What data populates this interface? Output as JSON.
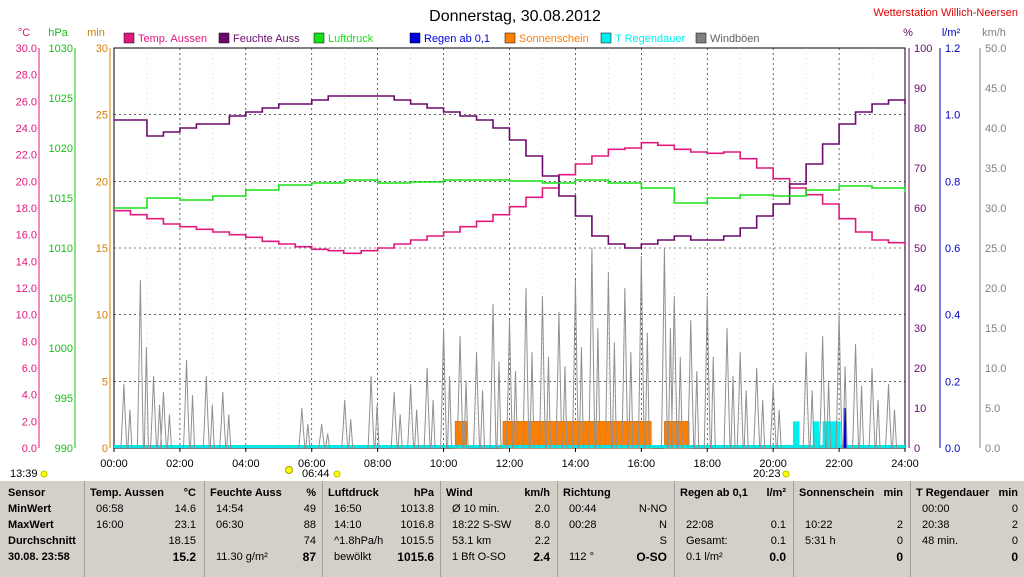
{
  "title": "Donnerstag, 30.08.2012",
  "station": "Wetterstation Willich-Neersen",
  "units": {
    "c": "°C",
    "hpa": "hPa",
    "min": "min",
    "pct": "%",
    "lm2": "l/m²",
    "kmh": "km/h"
  },
  "legend": [
    {
      "label": "Temp. Aussen",
      "color": "#e0197d"
    },
    {
      "label": "Feuchte Auss",
      "color": "#6a0a6e"
    },
    {
      "label": "Luftdruck",
      "color": "#19e019"
    },
    {
      "label": "Regen ab 0,1",
      "color": "#0000e0"
    },
    {
      "label": "Sonnenschein",
      "color": "#ff8000"
    },
    {
      "label": "T Regendauer",
      "color": "#00f0f0"
    },
    {
      "label": "Windböen",
      "color": "#808080"
    }
  ],
  "chart_data": {
    "type": "line",
    "x_ticks": [
      "00:00",
      "02:00",
      "04:00",
      "06:00",
      "08:00",
      "10:00",
      "12:00",
      "14:00",
      "16:00",
      "18:00",
      "20:00",
      "22:00",
      "24:00"
    ],
    "axes": {
      "temp_c": {
        "ticks": [
          "0.0",
          "2.0",
          "4.0",
          "6.0",
          "8.0",
          "10.0",
          "12.0",
          "14.0",
          "16.0",
          "18.0",
          "20.0",
          "22.0",
          "24.0",
          "26.0",
          "28.0",
          "30.0"
        ],
        "range": [
          0,
          30
        ],
        "color": "#e0197d"
      },
      "pressure_hpa": {
        "ticks": [
          "990",
          "995",
          "1000",
          "1005",
          "1010",
          "1015",
          "1020",
          "1025",
          "1030"
        ],
        "range": [
          990,
          1030
        ],
        "color": "#19c019"
      },
      "minutes": {
        "ticks": [
          "0",
          "5",
          "10",
          "15",
          "20",
          "25",
          "30"
        ],
        "range": [
          0,
          30
        ],
        "color": "#d08000"
      },
      "humidity_pct": {
        "ticks": [
          "0",
          "10",
          "20",
          "30",
          "40",
          "50",
          "60",
          "70",
          "80",
          "90",
          "100"
        ],
        "range": [
          0,
          100
        ],
        "color": "#6a0a6e"
      },
      "rain_lm2": {
        "ticks": [
          "0.0",
          "0.2",
          "0.4",
          "0.6",
          "0.8",
          "1.0",
          "1.2"
        ],
        "range": [
          0,
          1.2
        ],
        "color": "#0000c0"
      },
      "wind_kmh": {
        "ticks": [
          "0.0",
          "5.0",
          "10.0",
          "15.0",
          "20.0",
          "25.0",
          "30.0",
          "35.0",
          "40.0",
          "45.0",
          "50.0"
        ],
        "range": [
          0,
          50
        ],
        "color": "#808080"
      }
    },
    "series": [
      {
        "name": "Temp. Aussen",
        "axis": "temp_c",
        "color": "#e0197d",
        "points": [
          [
            0,
            17.8
          ],
          [
            0.5,
            17.5
          ],
          [
            1,
            17.2
          ],
          [
            1.5,
            16.8
          ],
          [
            2,
            16.6
          ],
          [
            2.5,
            16.4
          ],
          [
            3,
            16.2
          ],
          [
            3.5,
            16.0
          ],
          [
            4,
            15.8
          ],
          [
            4.5,
            15.5
          ],
          [
            5,
            15.3
          ],
          [
            5.5,
            15.1
          ],
          [
            6,
            14.9
          ],
          [
            6.5,
            14.8
          ],
          [
            6.97,
            14.6
          ],
          [
            7.5,
            14.8
          ],
          [
            8,
            15.0
          ],
          [
            8.5,
            15.3
          ],
          [
            9,
            15.6
          ],
          [
            9.5,
            15.9
          ],
          [
            10,
            16.2
          ],
          [
            10.5,
            16.6
          ],
          [
            11,
            17.0
          ],
          [
            11.5,
            17.5
          ],
          [
            12,
            18.1
          ],
          [
            12.5,
            18.8
          ],
          [
            13,
            19.5
          ],
          [
            13.5,
            20.5
          ],
          [
            14,
            21.3
          ],
          [
            14.5,
            21.9
          ],
          [
            15,
            22.4
          ],
          [
            15.5,
            22.5
          ],
          [
            16,
            22.9
          ],
          [
            16.5,
            22.7
          ],
          [
            17,
            22.4
          ],
          [
            17.5,
            22.2
          ],
          [
            18,
            22.1
          ],
          [
            18.5,
            22.2
          ],
          [
            19,
            21.7
          ],
          [
            19.5,
            21.0
          ],
          [
            20,
            20.2
          ],
          [
            20.5,
            19.5
          ],
          [
            21,
            19.0
          ],
          [
            21.5,
            18.3
          ],
          [
            22,
            17.2
          ],
          [
            22.5,
            16.2
          ],
          [
            23,
            15.6
          ],
          [
            23.5,
            15.4
          ],
          [
            24,
            15.2
          ]
        ]
      },
      {
        "name": "Feuchte Auss",
        "axis": "humidity_pct",
        "color": "#6a0a6e",
        "points": [
          [
            0,
            82
          ],
          [
            0.5,
            82
          ],
          [
            1,
            78
          ],
          [
            1.5,
            79
          ],
          [
            2,
            80
          ],
          [
            2.5,
            81
          ],
          [
            3,
            81
          ],
          [
            3.5,
            83
          ],
          [
            4,
            84
          ],
          [
            4.5,
            85
          ],
          [
            5,
            86
          ],
          [
            5.5,
            86
          ],
          [
            6,
            87
          ],
          [
            6.5,
            88
          ],
          [
            7,
            88
          ],
          [
            7.5,
            88
          ],
          [
            8,
            88
          ],
          [
            8.5,
            87
          ],
          [
            9,
            86
          ],
          [
            9.5,
            85
          ],
          [
            10,
            84
          ],
          [
            10.5,
            83
          ],
          [
            11,
            82
          ],
          [
            11.5,
            80
          ],
          [
            12,
            77
          ],
          [
            12.5,
            73
          ],
          [
            13,
            68
          ],
          [
            13.5,
            63
          ],
          [
            14,
            58
          ],
          [
            14.5,
            53
          ],
          [
            15,
            51
          ],
          [
            15.5,
            50
          ],
          [
            16,
            51
          ],
          [
            16.5,
            52
          ],
          [
            17,
            53
          ],
          [
            17.5,
            52
          ],
          [
            18,
            52
          ],
          [
            18.5,
            53
          ],
          [
            19,
            55
          ],
          [
            19.5,
            58
          ],
          [
            20,
            61
          ],
          [
            20.5,
            66
          ],
          [
            21,
            71
          ],
          [
            21.5,
            76
          ],
          [
            22,
            81
          ],
          [
            22.5,
            84
          ],
          [
            23,
            86
          ],
          [
            23.5,
            87
          ],
          [
            24,
            86
          ]
        ]
      },
      {
        "name": "Luftdruck",
        "axis": "pressure_hpa",
        "color": "#19e019",
        "points": [
          [
            0,
            1014.0
          ],
          [
            1,
            1015.0
          ],
          [
            2,
            1014.8
          ],
          [
            3,
            1015.2
          ],
          [
            4,
            1015.8
          ],
          [
            5,
            1016.3
          ],
          [
            6,
            1016.5
          ],
          [
            7,
            1016.8
          ],
          [
            8,
            1016.5
          ],
          [
            9,
            1016.6
          ],
          [
            10,
            1016.8
          ],
          [
            11,
            1016.8
          ],
          [
            12,
            1016.7
          ],
          [
            13,
            1016.5
          ],
          [
            14,
            1016.8
          ],
          [
            15,
            1016.5
          ],
          [
            16,
            1016.0
          ],
          [
            17,
            1014.5
          ],
          [
            18,
            1015.0
          ],
          [
            19,
            1015.3
          ],
          [
            20,
            1015.2
          ],
          [
            21,
            1015.8
          ],
          [
            22,
            1016.2
          ],
          [
            23,
            1016.0
          ],
          [
            24,
            1015.6
          ]
        ]
      }
    ],
    "sunshine_minutes": [
      [
        10.35,
        10.7
      ],
      [
        11.8,
        16.3
      ],
      [
        16.7,
        17.45
      ]
    ],
    "rain_duration_minutes": [
      [
        20.6,
        20.8,
        2.0
      ],
      [
        21.2,
        21.4,
        2.0
      ],
      [
        21.5,
        22.05,
        2.0
      ]
    ],
    "rain_bars_lm2": [
      [
        22.13,
        0.12
      ]
    ],
    "gust_peaks_kmh": [
      [
        0.3,
        8
      ],
      [
        0.8,
        21
      ],
      [
        1.2,
        9
      ],
      [
        1.5,
        7
      ],
      [
        2.2,
        11
      ],
      [
        2.8,
        9
      ],
      [
        3.3,
        7
      ],
      [
        5.7,
        5
      ],
      [
        6.3,
        3
      ],
      [
        7.0,
        6
      ],
      [
        7.8,
        9
      ],
      [
        8.5,
        7
      ],
      [
        9.0,
        8
      ],
      [
        9.5,
        10
      ],
      [
        10.0,
        15
      ],
      [
        10.5,
        14
      ],
      [
        11.0,
        12
      ],
      [
        11.5,
        18
      ],
      [
        12.0,
        16
      ],
      [
        12.5,
        20
      ],
      [
        13.0,
        19
      ],
      [
        13.5,
        17
      ],
      [
        14.0,
        21
      ],
      [
        14.5,
        25
      ],
      [
        15.0,
        22
      ],
      [
        15.5,
        20
      ],
      [
        16.0,
        24
      ],
      [
        16.7,
        25
      ],
      [
        17.0,
        19
      ],
      [
        17.5,
        16
      ],
      [
        18.0,
        19
      ],
      [
        18.6,
        15
      ],
      [
        19.0,
        12
      ],
      [
        19.5,
        10
      ],
      [
        20.0,
        8
      ],
      [
        21.0,
        12
      ],
      [
        21.5,
        14
      ],
      [
        22.0,
        17
      ],
      [
        22.5,
        13
      ],
      [
        23.0,
        10
      ],
      [
        23.5,
        8
      ]
    ]
  },
  "sun_times": {
    "left_time": "13:39",
    "sunrise": "06:44",
    "sunset": "20:23"
  },
  "table": {
    "rows": [
      "Sensor",
      "MinWert",
      "MaxWert",
      "Durchschnitt",
      "30.08. 23:58"
    ],
    "columns": [
      {
        "header": "Temp. Aussen",
        "unit": "°C",
        "min": [
          "06:58",
          "14.6"
        ],
        "max": [
          "16:00",
          "23.1"
        ],
        "avg": [
          "",
          "18.15"
        ],
        "cur": [
          "",
          "15.2"
        ]
      },
      {
        "header": "Feuchte Auss",
        "unit": "%",
        "min": [
          "14:54",
          "49"
        ],
        "max": [
          "06:30",
          "88"
        ],
        "avg": [
          "",
          "74"
        ],
        "cur": [
          "11.30 g/m²",
          "87"
        ]
      },
      {
        "header": "Luftdruck",
        "unit": "hPa",
        "min": [
          "16:50",
          "1013.8"
        ],
        "max": [
          "14:10",
          "1016.8"
        ],
        "avg": [
          "^1.8hPa/h",
          "1015.5"
        ],
        "cur": [
          "bewölkt",
          "1015.6"
        ]
      },
      {
        "header": "Wind",
        "unit": "km/h",
        "min": [
          "Ø 10 min.",
          "2.0"
        ],
        "max": [
          "18:22   S-SW",
          "8.0"
        ],
        "avg": [
          "53.1 km",
          "2.2"
        ],
        "cur": [
          "1 Bft O-SO",
          "2.4"
        ]
      },
      {
        "header": "Richtung",
        "unit": "",
        "min": [
          "00:44",
          "N-NO"
        ],
        "max": [
          "00:28",
          "N"
        ],
        "avg": [
          "",
          "S"
        ],
        "cur": [
          "112 °",
          "O-SO"
        ]
      },
      {
        "header": "Regen ab 0,1",
        "unit": "l/m²",
        "min": [
          "",
          ""
        ],
        "max": [
          "22:08",
          "0.1"
        ],
        "avg": [
          "Gesamt:",
          "0.1"
        ],
        "cur": [
          "0.1 l/m²",
          "0.0"
        ]
      },
      {
        "header": "Sonnenschein",
        "unit": "min",
        "min": [
          "",
          ""
        ],
        "max": [
          "10:22",
          "2"
        ],
        "avg": [
          "5:31 h",
          "0"
        ],
        "cur": [
          "",
          "0"
        ]
      },
      {
        "header": "T Regendauer",
        "unit": "min",
        "min": [
          "00:00",
          "0"
        ],
        "max": [
          "20:38",
          "2"
        ],
        "avg": [
          "48 min.",
          "0"
        ],
        "cur": [
          "",
          "0"
        ]
      }
    ]
  }
}
